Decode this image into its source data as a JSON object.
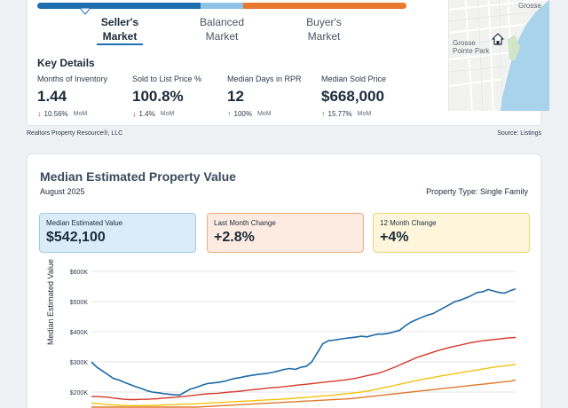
{
  "market": {
    "segments": [
      "Seller's Market",
      "Balanced Market",
      "Buyer's Market"
    ],
    "seller_l1": "Seller's",
    "seller_l2": "Market",
    "balanced_l1": "Balanced",
    "balanced_l2": "Market",
    "buyer_l1": "Buyer's",
    "buyer_l2": "Market",
    "active": "Seller's Market",
    "colors": {
      "seller": "#1f6fb0",
      "balanced": "#8ec3e6",
      "buyer": "#e8792f"
    }
  },
  "key_details": {
    "title": "Key Details",
    "stats": [
      {
        "label": "Months of Inventory",
        "value": "1.44",
        "change": "10.56%",
        "direction": "down",
        "period": "MoM"
      },
      {
        "label": "Sold to List Price %",
        "value": "100.8%",
        "change": "1.4%",
        "direction": "down",
        "period": "MoM"
      },
      {
        "label": "Median Days in RPR",
        "value": "12",
        "change": "100%",
        "direction": "up",
        "period": "MoM"
      },
      {
        "label": "Median Sold Price",
        "value": "$668,000",
        "change": "15.77%",
        "direction": "up",
        "period": "MoM"
      }
    ]
  },
  "map": {
    "label_top": "Grosse",
    "label_mid_1": "Grosse",
    "label_mid_2": "Pointe Park",
    "icon": "home-icon"
  },
  "footer": {
    "left": "Realtors Property Resource®, LLC",
    "right": "Source: Listings"
  },
  "estimate": {
    "title": "Median Estimated Property Value",
    "date": "August 2025",
    "property_type": "Property Type: Single Family",
    "boxes": [
      {
        "label": "Median Estimated Value",
        "value": "$542,100"
      },
      {
        "label": "Last Month Change",
        "value": "+2.8%"
      },
      {
        "label": "12 Month Change",
        "value": "+4%"
      }
    ]
  },
  "chart_data": {
    "type": "line",
    "ylabel": "Median Estimated Value",
    "yticks": [
      "$600K",
      "$500K",
      "$400K",
      "$300K",
      "$200K"
    ],
    "ylim": [
      150000,
      600000
    ],
    "grid": true,
    "series": [
      {
        "color": "#1b6aa5",
        "values": [
          300000,
          282000,
          270000,
          258000,
          245000,
          240000,
          232000,
          225000,
          218000,
          212000,
          205000,
          200000,
          198000,
          195000,
          193000,
          191000,
          190000,
          200000,
          210000,
          215000,
          222000,
          228000,
          230000,
          232000,
          235000,
          240000,
          245000,
          248000,
          252000,
          255000,
          258000,
          260000,
          262000,
          266000,
          270000,
          275000,
          278000,
          275000,
          282000,
          285000,
          300000,
          330000,
          360000,
          370000,
          372000,
          375000,
          378000,
          380000,
          382000,
          385000,
          383000,
          388000,
          392000,
          392000,
          395000,
          400000,
          405000,
          420000,
          432000,
          440000,
          448000,
          455000,
          460000,
          470000,
          480000,
          490000,
          500000,
          505000,
          512000,
          520000,
          530000,
          532000,
          540000,
          535000,
          530000,
          528000,
          536000,
          542100
        ]
      },
      {
        "color": "#d63a2b",
        "values": [
          185000,
          185000,
          184000,
          183000,
          180000,
          178000,
          176000,
          175000,
          175000,
          176000,
          176000,
          177000,
          178000,
          180000,
          181000,
          182000,
          184000,
          186000,
          188000,
          190000,
          192000,
          194000,
          195000,
          196000,
          198000,
          200000,
          201000,
          203000,
          205000,
          207000,
          209000,
          211000,
          213000,
          215000,
          216000,
          218000,
          220000,
          222000,
          224000,
          226000,
          228000,
          230000,
          232000,
          234000,
          236000,
          238000,
          240000,
          243000,
          246000,
          250000,
          254000,
          258000,
          262000,
          268000,
          275000,
          282000,
          290000,
          298000,
          306000,
          314000,
          320000,
          326000,
          332000,
          338000,
          343000,
          348000,
          352000,
          356000,
          360000,
          364000,
          367000,
          370000,
          372000,
          374000,
          376000,
          378000,
          380000,
          381000
        ]
      },
      {
        "color": "#f2c20f",
        "values": [
          163000,
          162000,
          160000,
          158000,
          157000,
          156000,
          155000,
          155000,
          155000,
          155000,
          155000,
          156000,
          156000,
          157000,
          158000,
          158000,
          159000,
          160000,
          160000,
          161000,
          162000,
          163000,
          164000,
          165000,
          166000,
          167000,
          168000,
          169000,
          170000,
          171000,
          172000,
          173000,
          174000,
          175000,
          176000,
          177000,
          178000,
          180000,
          181000,
          182000,
          184000,
          185000,
          187000,
          188000,
          190000,
          192000,
          194000,
          196000,
          198000,
          200000,
          203000,
          206000,
          210000,
          214000,
          218000,
          222000,
          226000,
          230000,
          234000,
          238000,
          242000,
          245000,
          248000,
          252000,
          255000,
          258000,
          261000,
          264000,
          267000,
          270000,
          273000,
          276000,
          279000,
          282000,
          285000,
          287000,
          289000,
          292000
        ]
      },
      {
        "color": "#e0782c",
        "values": [
          150000,
          150000,
          150000,
          150000,
          150000,
          150000,
          150000,
          150000,
          150000,
          150000,
          150000,
          150000,
          150000,
          150000,
          150000,
          150000,
          150000,
          150000,
          150000,
          150000,
          151000,
          152000,
          153000,
          154000,
          155000,
          156000,
          157000,
          158000,
          159000,
          160000,
          161000,
          162000,
          163000,
          164000,
          165000,
          166000,
          167000,
          168000,
          169000,
          170000,
          171000,
          172000,
          173000,
          174000,
          175000,
          176000,
          177000,
          178000,
          180000,
          182000,
          184000,
          186000,
          188000,
          190000,
          192000,
          194000,
          196000,
          198000,
          200000,
          202000,
          204000,
          206000,
          208000,
          210000,
          212000,
          214000,
          216000,
          218000,
          220000,
          222000,
          224000,
          226000,
          228000,
          230000,
          232000,
          234000,
          236000,
          240000
        ]
      }
    ]
  }
}
